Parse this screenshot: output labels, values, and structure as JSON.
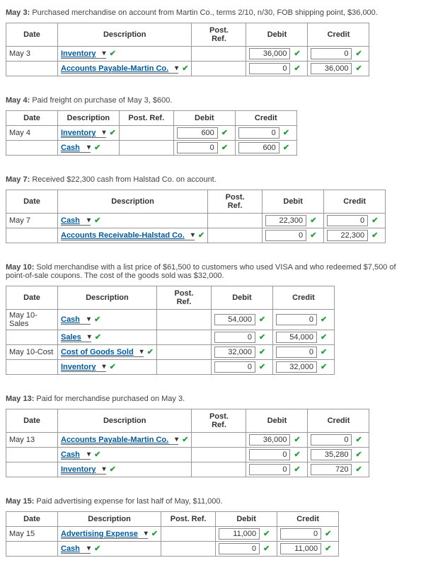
{
  "entries": [
    {
      "id": "may3",
      "title": "May 3:",
      "desc": "Purchased merchandise on account from Martin Co., terms 2/10, n/30, FOB shipping point, $36,000.",
      "headers": [
        "Date",
        "Description",
        "Post. Ref.",
        "Debit",
        "Credit"
      ],
      "postref_two_line": true,
      "rows": [
        {
          "date": "May 3",
          "acct": "Inventory",
          "dd": true,
          "debit": "36,000",
          "credit": "0"
        },
        {
          "date": "",
          "acct": "Accounts Payable-Martin Co.",
          "dd": true,
          "indent": true,
          "debit": "0",
          "credit": "36,000"
        }
      ]
    },
    {
      "id": "may4",
      "title": "May 4:",
      "desc": "Paid freight on purchase of May 3, $600.",
      "headers": [
        "Date",
        "Description",
        "Post. Ref.",
        "Debit",
        "Credit"
      ],
      "postref_two_line": false,
      "rows": [
        {
          "date": "May 4",
          "acct": "Inventory",
          "dd": true,
          "debit": "600",
          "credit": "0"
        },
        {
          "date": "",
          "acct": "Cash",
          "dd": true,
          "indent": true,
          "debit": "0",
          "credit": "600"
        }
      ]
    },
    {
      "id": "may7",
      "title": "May 7:",
      "desc": "Received $22,300 cash from Halstad Co. on account.",
      "headers": [
        "Date",
        "Description",
        "Post. Ref.",
        "Debit",
        "Credit"
      ],
      "postref_two_line": true,
      "rows": [
        {
          "date": "May 7",
          "acct": "Cash",
          "dd": true,
          "debit": "22,300",
          "credit": "0"
        },
        {
          "date": "",
          "acct": "Accounts Receivable-Halstad Co.",
          "dd": true,
          "indent": true,
          "debit": "0",
          "credit": "22,300"
        }
      ]
    },
    {
      "id": "may10",
      "title": "May 10:",
      "desc": "Sold merchandise with a list price of $61,500 to customers who used VISA and who redeemed $7,500 of point-of-sale coupons. The cost of the goods sold was $32,000.",
      "headers": [
        "Date",
        "Description",
        "Post. Ref.",
        "Debit",
        "Credit"
      ],
      "postref_two_line": true,
      "rows": [
        {
          "date": "May 10-Sales",
          "acct": "Cash",
          "dd": true,
          "debit": "54,000",
          "credit": "0"
        },
        {
          "date": "",
          "acct": "Sales",
          "dd": true,
          "indent": true,
          "debit": "0",
          "credit": "54,000"
        },
        {
          "date": "May 10-Cost",
          "acct": "Cost of Goods Sold",
          "dd": true,
          "debit": "32,000",
          "credit": "0"
        },
        {
          "date": "",
          "acct": "Inventory",
          "dd": true,
          "indent": true,
          "debit": "0",
          "credit": "32,000"
        }
      ]
    },
    {
      "id": "may13",
      "title": "May 13:",
      "desc": "Paid for merchandise purchased on May 3.",
      "headers": [
        "Date",
        "Description",
        "Post. Ref.",
        "Debit",
        "Credit"
      ],
      "postref_two_line": true,
      "rows": [
        {
          "date": "May 13",
          "acct": "Accounts Payable-Martin Co.",
          "dd": true,
          "debit": "36,000",
          "credit": "0"
        },
        {
          "date": "",
          "acct": "Cash",
          "dd": true,
          "indent": true,
          "debit": "0",
          "credit": "35,280"
        },
        {
          "date": "",
          "acct": "Inventory",
          "dd": true,
          "indent": true,
          "debit": "0",
          "credit": "720"
        }
      ]
    },
    {
      "id": "may15",
      "title": "May 15:",
      "desc": "Paid advertising expense for last half of May, $11,000.",
      "headers": [
        "Date",
        "Description",
        "Post. Ref.",
        "Debit",
        "Credit"
      ],
      "postref_two_line": false,
      "rows": [
        {
          "date": "May 15",
          "acct": "Advertising Expense",
          "dd": true,
          "debit": "11,000",
          "credit": "0"
        },
        {
          "date": "",
          "acct": "Cash",
          "dd": true,
          "indent": true,
          "debit": "0",
          "credit": "11,000"
        }
      ]
    }
  ],
  "colors": {
    "link": "#005a9c",
    "check": "#21a038"
  }
}
